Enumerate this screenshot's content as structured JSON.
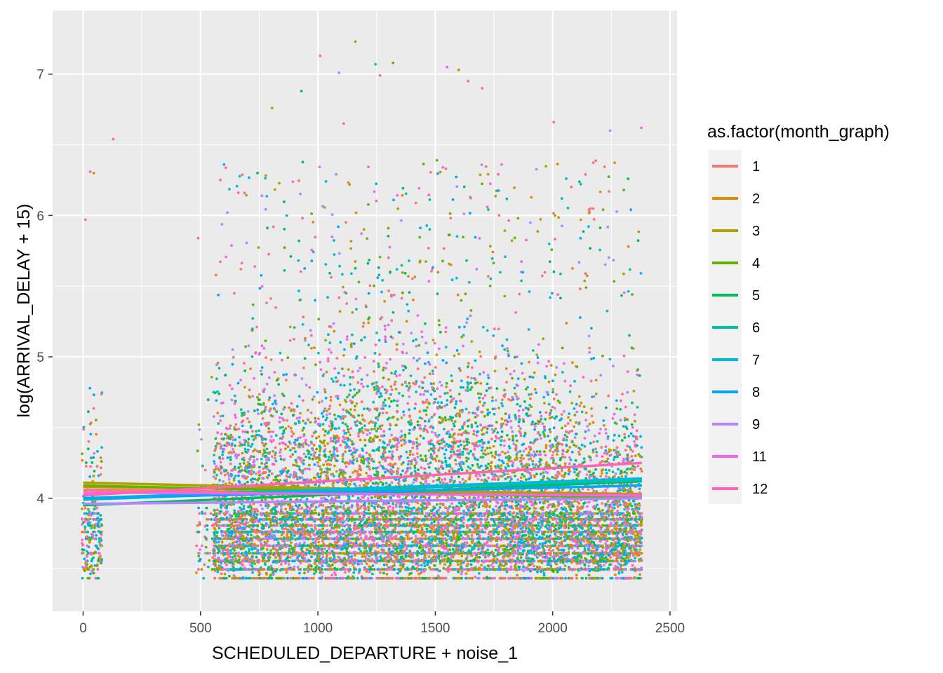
{
  "chart_data": {
    "type": "scatter",
    "xlabel": "SCHEDULED_DEPARTURE + noise_1",
    "ylabel": "log(ARRIVAL_DELAY + 15)",
    "xlim": [
      -130,
      2530
    ],
    "ylim": [
      3.2,
      7.45
    ],
    "x_ticks": [
      0,
      500,
      1000,
      1500,
      2000,
      2500
    ],
    "x_tick_labels": [
      "0",
      "500",
      "1000",
      "1500",
      "2000",
      "2500"
    ],
    "y_ticks": [
      4,
      5,
      6,
      7
    ],
    "y_tick_labels": [
      "4",
      "5",
      "6",
      "7"
    ],
    "grid": true,
    "background": "#ebebeb",
    "legend": {
      "title": "as.factor(month_graph)",
      "placement": "right",
      "entries": [
        "1",
        "2",
        "3",
        "4",
        "5",
        "6",
        "7",
        "8",
        "9",
        "11",
        "12"
      ]
    },
    "series": [
      {
        "name": "1",
        "color": "#F8766D",
        "trend": [
          [
            0,
            4.06
          ],
          [
            2380,
            4.01
          ]
        ]
      },
      {
        "name": "2",
        "color": "#DB8E00",
        "trend": [
          [
            0,
            4.08
          ],
          [
            2380,
            4.03
          ]
        ]
      },
      {
        "name": "3",
        "color": "#AEA200",
        "trend": [
          [
            0,
            4.11
          ],
          [
            2380,
            4.02
          ]
        ]
      },
      {
        "name": "4",
        "color": "#64B200",
        "trend": [
          [
            0,
            4.09
          ],
          [
            2380,
            4.0
          ]
        ]
      },
      {
        "name": "5",
        "color": "#00BD5C",
        "trend": [
          [
            0,
            3.95
          ],
          [
            2380,
            4.12
          ]
        ]
      },
      {
        "name": "6",
        "color": "#00C1A7",
        "trend": [
          [
            0,
            3.99
          ],
          [
            2380,
            4.13
          ]
        ]
      },
      {
        "name": "7",
        "color": "#00BADE",
        "trend": [
          [
            0,
            4.0
          ],
          [
            2380,
            4.14
          ]
        ]
      },
      {
        "name": "8",
        "color": "#00A6FF",
        "trend": [
          [
            0,
            4.0
          ],
          [
            2380,
            4.09
          ]
        ]
      },
      {
        "name": "9",
        "color": "#B385FF",
        "trend": [
          [
            0,
            3.96
          ],
          [
            2380,
            4.0
          ]
        ]
      },
      {
        "name": "11",
        "color": "#EF67EB",
        "trend": [
          [
            0,
            4.04
          ],
          [
            2380,
            4.02
          ]
        ]
      },
      {
        "name": "12",
        "color": "#FF63B6",
        "trend": [
          [
            0,
            4.02
          ],
          [
            2380,
            4.25
          ]
        ]
      }
    ],
    "sample_points": [
      {
        "x": 10,
        "y": 5.97,
        "series": "12"
      },
      {
        "x": 30,
        "y": 6.31,
        "series": "12"
      },
      {
        "x": 45,
        "y": 6.3,
        "series": "2"
      },
      {
        "x": 128,
        "y": 6.54,
        "series": "12"
      },
      {
        "x": 1010,
        "y": 7.13,
        "series": "1"
      },
      {
        "x": 1160,
        "y": 7.23,
        "series": "3"
      },
      {
        "x": 1245,
        "y": 7.07,
        "series": "7"
      },
      {
        "x": 1320,
        "y": 7.08,
        "series": "4"
      },
      {
        "x": 1265,
        "y": 6.99,
        "series": "12"
      },
      {
        "x": 1090,
        "y": 7.01,
        "series": "9"
      },
      {
        "x": 1550,
        "y": 7.05,
        "series": "11"
      },
      {
        "x": 1600,
        "y": 7.03,
        "series": "3"
      },
      {
        "x": 1640,
        "y": 6.95,
        "series": "12"
      },
      {
        "x": 1700,
        "y": 6.9,
        "series": "12"
      },
      {
        "x": 930,
        "y": 6.88,
        "series": "5"
      },
      {
        "x": 2005,
        "y": 6.66,
        "series": "12"
      },
      {
        "x": 2245,
        "y": 6.6,
        "series": "9"
      },
      {
        "x": 2378,
        "y": 6.62,
        "series": "11"
      },
      {
        "x": 805,
        "y": 6.76,
        "series": "3"
      },
      {
        "x": 1110,
        "y": 6.65,
        "series": "12"
      },
      {
        "x": 2010,
        "y": 6.0,
        "series": "3"
      },
      {
        "x": 2140,
        "y": 6.29,
        "series": "12"
      },
      {
        "x": 2240,
        "y": 6.17,
        "series": "12"
      },
      {
        "x": 490,
        "y": 5.84,
        "series": "12"
      }
    ]
  }
}
